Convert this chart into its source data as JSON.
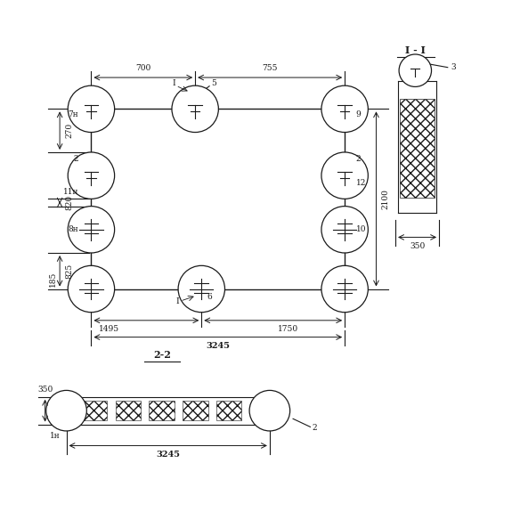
{
  "bg_color": "#ffffff",
  "line_color": "#1a1a1a",
  "section_label_11": "I - I",
  "section_label_22": "2-2",
  "dims": {
    "top_700": "700",
    "top_755": "755",
    "left_270": "270",
    "left_820": "820",
    "left_825": "825",
    "left_185": "185",
    "right_2100": "2100",
    "bottom_1495": "1495",
    "bottom_1750": "1750",
    "bottom_3245": "3245",
    "section_350": "350",
    "labels_left": [
      "7н",
      "2",
      "11н",
      "8н"
    ],
    "labels_right": [
      "9",
      "2",
      "12",
      "10"
    ],
    "elem_labels": [
      "I",
      "5",
      "6",
      "I"
    ],
    "elem_nums": [
      "3",
      "2"
    ]
  }
}
